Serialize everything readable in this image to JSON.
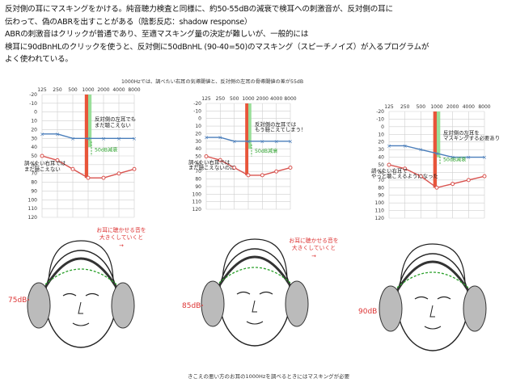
{
  "paragraph": {
    "lines": [
      "反対側の耳にマスキングをかける。純音聴力検査と同様に、約50-55dBの減衰で検耳への刺激音が、反対側の耳に",
      "伝わって、偽のABRを出すことがある（陰影反応：shadow response）",
      "ABRの刺激音はクリックが普通であり、至適マスキング量の決定が難しいが、一般的には",
      "検耳に90dBnHLのクリックを使うと、反対側に50dBnHL (90-40=50)のマスキング（スピーチノイズ）が入るプログラムが",
      "よく使われている。"
    ]
  },
  "figure_title": "1000Hzでは、調べたい右耳の気導閾値と、反対側の左耳の骨導閾値の差が55dB",
  "axis": {
    "x_ticks": [
      "125",
      "250",
      "500",
      "1000",
      "2000",
      "4000",
      "8000"
    ],
    "y_ticks": [
      "-20",
      "-10",
      "0",
      "10",
      "20",
      "30",
      "40",
      "50",
      "60",
      "70",
      "80",
      "90",
      "100",
      "110",
      "120"
    ]
  },
  "panels": [
    {
      "right_ear": [
        50,
        55,
        65,
        75,
        75,
        70,
        65
      ],
      "left_ear": [
        25,
        25,
        30,
        30,
        30,
        30,
        30
      ],
      "note_left": [
        "反対側の左耳でも",
        "まだ聴こえない"
      ],
      "note_masking": "50dB減衰",
      "note_right": [
        "調べたい右耳では",
        "まだ聴こえない"
      ],
      "instruction": [
        "お耳に聴かせる音を",
        "大きくしていくと",
        "→"
      ],
      "level": "75dB"
    },
    {
      "right_ear": [
        50,
        55,
        65,
        75,
        75,
        70,
        65
      ],
      "left_ear": [
        25,
        25,
        30,
        30,
        30,
        30,
        30
      ],
      "note_left": [
        "反対側の左耳では",
        "もう聴こえてしまう！"
      ],
      "note_masking": "50dB減衰",
      "note_right": [
        "調べたい右耳では",
        "まだ聴こえないのに"
      ],
      "instruction": [
        "お耳に聴かせる音を",
        "大きくしていくと",
        "→"
      ],
      "level": "85dB"
    },
    {
      "right_ear": [
        50,
        55,
        65,
        80,
        75,
        70,
        65
      ],
      "left_ear": [
        25,
        25,
        30,
        35,
        40,
        40,
        40
      ],
      "note_left": [
        "反対側の左耳を",
        "マスキングする必要あり"
      ],
      "note_masking": "50dB減衰",
      "note_right": [
        "調べたい右耳で",
        "やっと聴こえるようになった"
      ],
      "level": "90dB"
    }
  ],
  "caption": "きこえの悪い方のお耳の1000Hzを調べるときにはマスキングが必要",
  "colors": {
    "right_ear": "#d9534f",
    "left_ear": "#4a7ebb",
    "masking_red": "#e8553a",
    "masking_green": "#8fdc8f"
  }
}
